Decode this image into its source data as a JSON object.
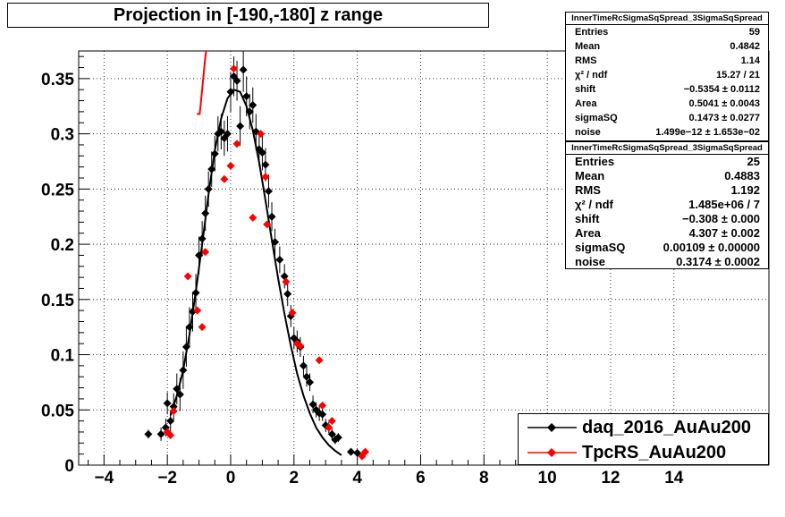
{
  "title": "Projection in [-190,-180] z range",
  "stats_boxes": [
    {
      "header": "InnerTimeRcSigmaSqSpread_3SigmaSqSpread",
      "rows": [
        {
          "label": "Entries",
          "value": "59"
        },
        {
          "label": "Mean",
          "value": "0.4842"
        },
        {
          "label": "RMS",
          "value": "1.14"
        },
        {
          "label": "χ² / ndf",
          "value": "15.27 / 21"
        },
        {
          "label": "shift",
          "value": "−0.5354 ± 0.0112"
        },
        {
          "label": "Area",
          "value": "0.5041 ± 0.0043"
        },
        {
          "label": "sigmaSQ",
          "value": "0.1473 ± 0.0277"
        },
        {
          "label": "noise",
          "value": "1.499e−12 ± 1.653e−02"
        }
      ]
    },
    {
      "header": "InnerTimeRcSigmaSqSpread_3SigmaSqSpread",
      "rows": [
        {
          "label": "Entries",
          "value": "25"
        },
        {
          "label": "Mean",
          "value": "0.4883"
        },
        {
          "label": "RMS",
          "value": "1.192"
        },
        {
          "label": "χ² / ndf",
          "value": "1.485e+06 / 7"
        },
        {
          "label": "shift",
          "value": "−0.308 ± 0.000"
        },
        {
          "label": "Area",
          "value": "4.307 ± 0.002"
        },
        {
          "label": "sigmaSQ",
          "value": "0.00109 ± 0.00000"
        },
        {
          "label": "noise",
          "value": "0.3174 ± 0.0002"
        }
      ]
    }
  ],
  "legend": [
    {
      "label": "daq_2016_AuAu200",
      "color": "#000000"
    },
    {
      "label": "TpcRS_AuAu200",
      "color": "#ff0000"
    }
  ],
  "chart_data": {
    "type": "scatter",
    "title": "Projection in [-190,-180] z range",
    "xlim": [
      -4.8,
      17
    ],
    "ylim": [
      0,
      0.375
    ],
    "xticks": [
      -4,
      -2,
      0,
      2,
      4,
      6,
      8,
      10,
      12,
      14
    ],
    "xtick_labels": [
      "−4",
      "−2",
      "0",
      "2",
      "4",
      "6",
      "8",
      "10",
      "12",
      "14"
    ],
    "yticks": [
      0,
      0.05,
      0.1,
      0.15,
      0.2,
      0.25,
      0.3,
      0.35
    ],
    "ytick_labels": [
      "0",
      "0.05",
      "0.1",
      "0.15",
      "0.2",
      "0.25",
      "0.3",
      "0.35"
    ],
    "grid": true,
    "legend_position": "bottom-right",
    "series": [
      {
        "name": "daq_2016_AuAu200",
        "color": "#000000",
        "marker": "diamond",
        "points": [
          [
            -2.6,
            0.028,
            0.004
          ],
          [
            -2.2,
            0.028,
            0.006
          ],
          [
            -2.05,
            0.034,
            0.008
          ],
          [
            -2.0,
            0.056,
            0.01
          ],
          [
            -1.9,
            0.04,
            0.01
          ],
          [
            -1.8,
            0.053,
            0.012
          ],
          [
            -1.7,
            0.069,
            0.014
          ],
          [
            -1.6,
            0.064,
            0.015
          ],
          [
            -1.5,
            0.086,
            0.017
          ],
          [
            -1.4,
            0.107,
            0.018
          ],
          [
            -1.3,
            0.125,
            0.018
          ],
          [
            -1.2,
            0.139,
            0.018
          ],
          [
            -1.1,
            0.156,
            0.017
          ],
          [
            -1.0,
            0.19,
            0.017
          ],
          [
            -0.9,
            0.205,
            0.016
          ],
          [
            -0.8,
            0.228,
            0.016
          ],
          [
            -0.7,
            0.25,
            0.016
          ],
          [
            -0.6,
            0.268,
            0.016
          ],
          [
            -0.5,
            0.282,
            0.016
          ],
          [
            -0.4,
            0.3,
            0.016
          ],
          [
            -0.3,
            0.302,
            0.016
          ],
          [
            -0.2,
            0.296,
            0.016
          ],
          [
            -0.1,
            0.3,
            0.016
          ],
          [
            0.0,
            0.338,
            0.018
          ],
          [
            0.1,
            0.352,
            0.018
          ],
          [
            0.2,
            0.348,
            0.018
          ],
          [
            0.3,
            0.307,
            0.018
          ],
          [
            0.4,
            0.358,
            0.02
          ],
          [
            0.5,
            0.334,
            0.018
          ],
          [
            0.6,
            0.32,
            0.016
          ],
          [
            0.7,
            0.326,
            0.016
          ],
          [
            0.8,
            0.302,
            0.016
          ],
          [
            0.9,
            0.286,
            0.016
          ],
          [
            1.0,
            0.283,
            0.016
          ],
          [
            1.1,
            0.272,
            0.015
          ],
          [
            1.2,
            0.248,
            0.015
          ],
          [
            1.3,
            0.225,
            0.013
          ],
          [
            1.4,
            0.202,
            0.012
          ],
          [
            1.55,
            0.186,
            0.012
          ],
          [
            1.7,
            0.171,
            0.011
          ],
          [
            1.8,
            0.155,
            0.011
          ],
          [
            1.9,
            0.135,
            0.01
          ],
          [
            2.0,
            0.115,
            0.01
          ],
          [
            2.1,
            0.112,
            0.01
          ],
          [
            2.2,
            0.107,
            0.009
          ],
          [
            2.3,
            0.09,
            0.009
          ],
          [
            2.4,
            0.08,
            0.009
          ],
          [
            2.5,
            0.075,
            0.008
          ],
          [
            2.6,
            0.055,
            0.008
          ],
          [
            2.7,
            0.05,
            0.007
          ],
          [
            2.8,
            0.047,
            0.007
          ],
          [
            2.9,
            0.046,
            0.006
          ],
          [
            3.0,
            0.036,
            0.006
          ],
          [
            3.1,
            0.034,
            0.005
          ],
          [
            3.2,
            0.028,
            0.005
          ],
          [
            3.3,
            0.023,
            0.004
          ],
          [
            3.4,
            0.025,
            0.004
          ],
          [
            3.8,
            0.012,
            0.003
          ],
          [
            4.0,
            0.011,
            0.003
          ]
        ]
      },
      {
        "name": "TpcRS_AuAu200",
        "color": "#ff0000",
        "marker": "diamond",
        "points": [
          [
            -2.0,
            0.03
          ],
          [
            -1.9,
            0.027
          ],
          [
            -1.8,
            0.049
          ],
          [
            -1.35,
            0.171
          ],
          [
            -1.05,
            0.14
          ],
          [
            -0.9,
            0.125
          ],
          [
            -0.8,
            0.193
          ],
          [
            -0.2,
            0.259
          ],
          [
            0.0,
            0.271
          ],
          [
            0.1,
            0.359
          ],
          [
            0.2,
            0.291
          ],
          [
            0.7,
            0.224
          ],
          [
            0.95,
            0.3
          ],
          [
            1.1,
            0.261
          ],
          [
            1.15,
            0.218
          ],
          [
            1.75,
            0.166
          ],
          [
            1.95,
            0.138
          ],
          [
            2.1,
            0.11
          ],
          [
            2.2,
            0.108
          ],
          [
            2.8,
            0.095
          ],
          [
            2.9,
            0.054
          ],
          [
            3.1,
            0.034
          ],
          [
            3.2,
            0.04
          ],
          [
            4.15,
            0.008
          ],
          [
            4.25,
            0.012
          ]
        ]
      }
    ],
    "fits": [
      {
        "name": "daq_2016_AuAu200 fit",
        "color": "#000000",
        "points": [
          [
            -1.9,
            0.045
          ],
          [
            -1.7,
            0.063
          ],
          [
            -1.5,
            0.086
          ],
          [
            -1.3,
            0.118
          ],
          [
            -1.1,
            0.157
          ],
          [
            -0.9,
            0.2
          ],
          [
            -0.7,
            0.245
          ],
          [
            -0.5,
            0.285
          ],
          [
            -0.3,
            0.314
          ],
          [
            -0.1,
            0.332
          ],
          [
            0.1,
            0.34
          ],
          [
            0.3,
            0.338
          ],
          [
            0.5,
            0.325
          ],
          [
            0.7,
            0.303
          ],
          [
            0.9,
            0.274
          ],
          [
            1.1,
            0.24
          ],
          [
            1.3,
            0.204
          ],
          [
            1.5,
            0.169
          ],
          [
            1.7,
            0.137
          ],
          [
            1.9,
            0.108
          ],
          [
            2.1,
            0.083
          ],
          [
            2.3,
            0.063
          ],
          [
            2.5,
            0.047
          ],
          [
            2.7,
            0.034
          ],
          [
            2.9,
            0.025
          ],
          [
            3.1,
            0.018
          ],
          [
            3.3,
            0.013
          ],
          [
            3.5,
            0.009
          ]
        ]
      },
      {
        "name": "TpcRS_AuAu200 fit",
        "color": "#ff0000",
        "points": [
          [
            -1.07,
            0.318
          ],
          [
            -0.98,
            0.318
          ],
          [
            -0.95,
            0.325
          ],
          [
            -0.9,
            0.34
          ],
          [
            -0.85,
            0.355
          ],
          [
            -0.8,
            0.37
          ],
          [
            -0.77,
            0.375
          ]
        ]
      }
    ]
  }
}
